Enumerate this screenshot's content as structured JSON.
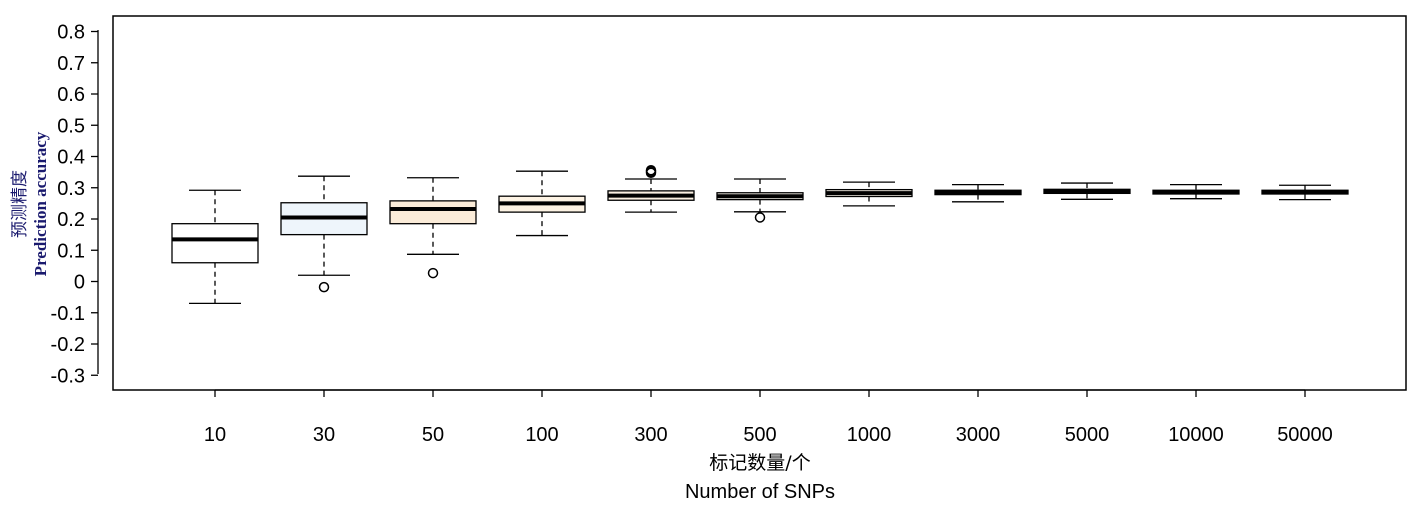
{
  "chart_data": {
    "type": "boxplot",
    "title": "",
    "xlabel_cn": "标记数量/个",
    "xlabel_en": "Number of SNPs",
    "ylabel_cn": "预测精度",
    "ylabel_en": "Prediction accuracy",
    "ylim": [
      -0.35,
      0.85
    ],
    "yticks": [
      -0.3,
      -0.2,
      -0.1,
      0,
      0.1,
      0.2,
      0.3,
      0.4,
      0.5,
      0.6,
      0.7,
      0.8
    ],
    "ytick_labels": [
      "-0.3",
      "-0.2",
      "-0.1",
      "0",
      "0.1",
      "0.2",
      "0.3",
      "0.4",
      "0.5",
      "0.6",
      "0.7",
      "0.8"
    ],
    "categories": [
      "10",
      "30",
      "50",
      "100",
      "300",
      "500",
      "1000",
      "3000",
      "5000",
      "10000",
      "50000"
    ],
    "boxes": [
      {
        "whisker_low": -0.07,
        "q1": 0.06,
        "median": 0.135,
        "q3": 0.185,
        "whisker_high": 0.292,
        "outliers": [],
        "fill": "#ffffff"
      },
      {
        "whisker_low": 0.02,
        "q1": 0.15,
        "median": 0.205,
        "q3": 0.252,
        "whisker_high": 0.337,
        "outliers": [
          -0.018
        ],
        "fill": "#eef5fb"
      },
      {
        "whisker_low": 0.087,
        "q1": 0.185,
        "median": 0.232,
        "q3": 0.258,
        "whisker_high": 0.332,
        "outliers": [
          0.027
        ],
        "fill": "#fbecd9"
      },
      {
        "whisker_low": 0.147,
        "q1": 0.222,
        "median": 0.25,
        "q3": 0.273,
        "whisker_high": 0.353,
        "outliers": [],
        "fill": "#fdf3e4"
      },
      {
        "whisker_low": 0.222,
        "q1": 0.26,
        "median": 0.275,
        "q3": 0.29,
        "whisker_high": 0.328,
        "outliers": [
          0.348,
          0.352,
          0.356
        ],
        "fill": "#faf0e2"
      },
      {
        "whisker_low": 0.223,
        "q1": 0.262,
        "median": 0.273,
        "q3": 0.284,
        "whisker_high": 0.328,
        "outliers": [
          0.205
        ],
        "fill": "#f6f3ea"
      },
      {
        "whisker_low": 0.242,
        "q1": 0.272,
        "median": 0.283,
        "q3": 0.294,
        "whisker_high": 0.318,
        "outliers": [],
        "fill": "#faf5ea"
      },
      {
        "whisker_low": 0.255,
        "q1": 0.278,
        "median": 0.286,
        "q3": 0.292,
        "whisker_high": 0.31,
        "outliers": [],
        "fill": "#faf5ea"
      },
      {
        "whisker_low": 0.263,
        "q1": 0.282,
        "median": 0.289,
        "q3": 0.295,
        "whisker_high": 0.315,
        "outliers": [],
        "fill": "#faf5ea"
      },
      {
        "whisker_low": 0.265,
        "q1": 0.28,
        "median": 0.286,
        "q3": 0.292,
        "whisker_high": 0.31,
        "outliers": [],
        "fill": "#faf5ea"
      },
      {
        "whisker_low": 0.262,
        "q1": 0.28,
        "median": 0.286,
        "q3": 0.292,
        "whisker_high": 0.308,
        "outliers": [],
        "fill": "#faf5ea"
      }
    ],
    "grid": false,
    "legend": "none"
  }
}
